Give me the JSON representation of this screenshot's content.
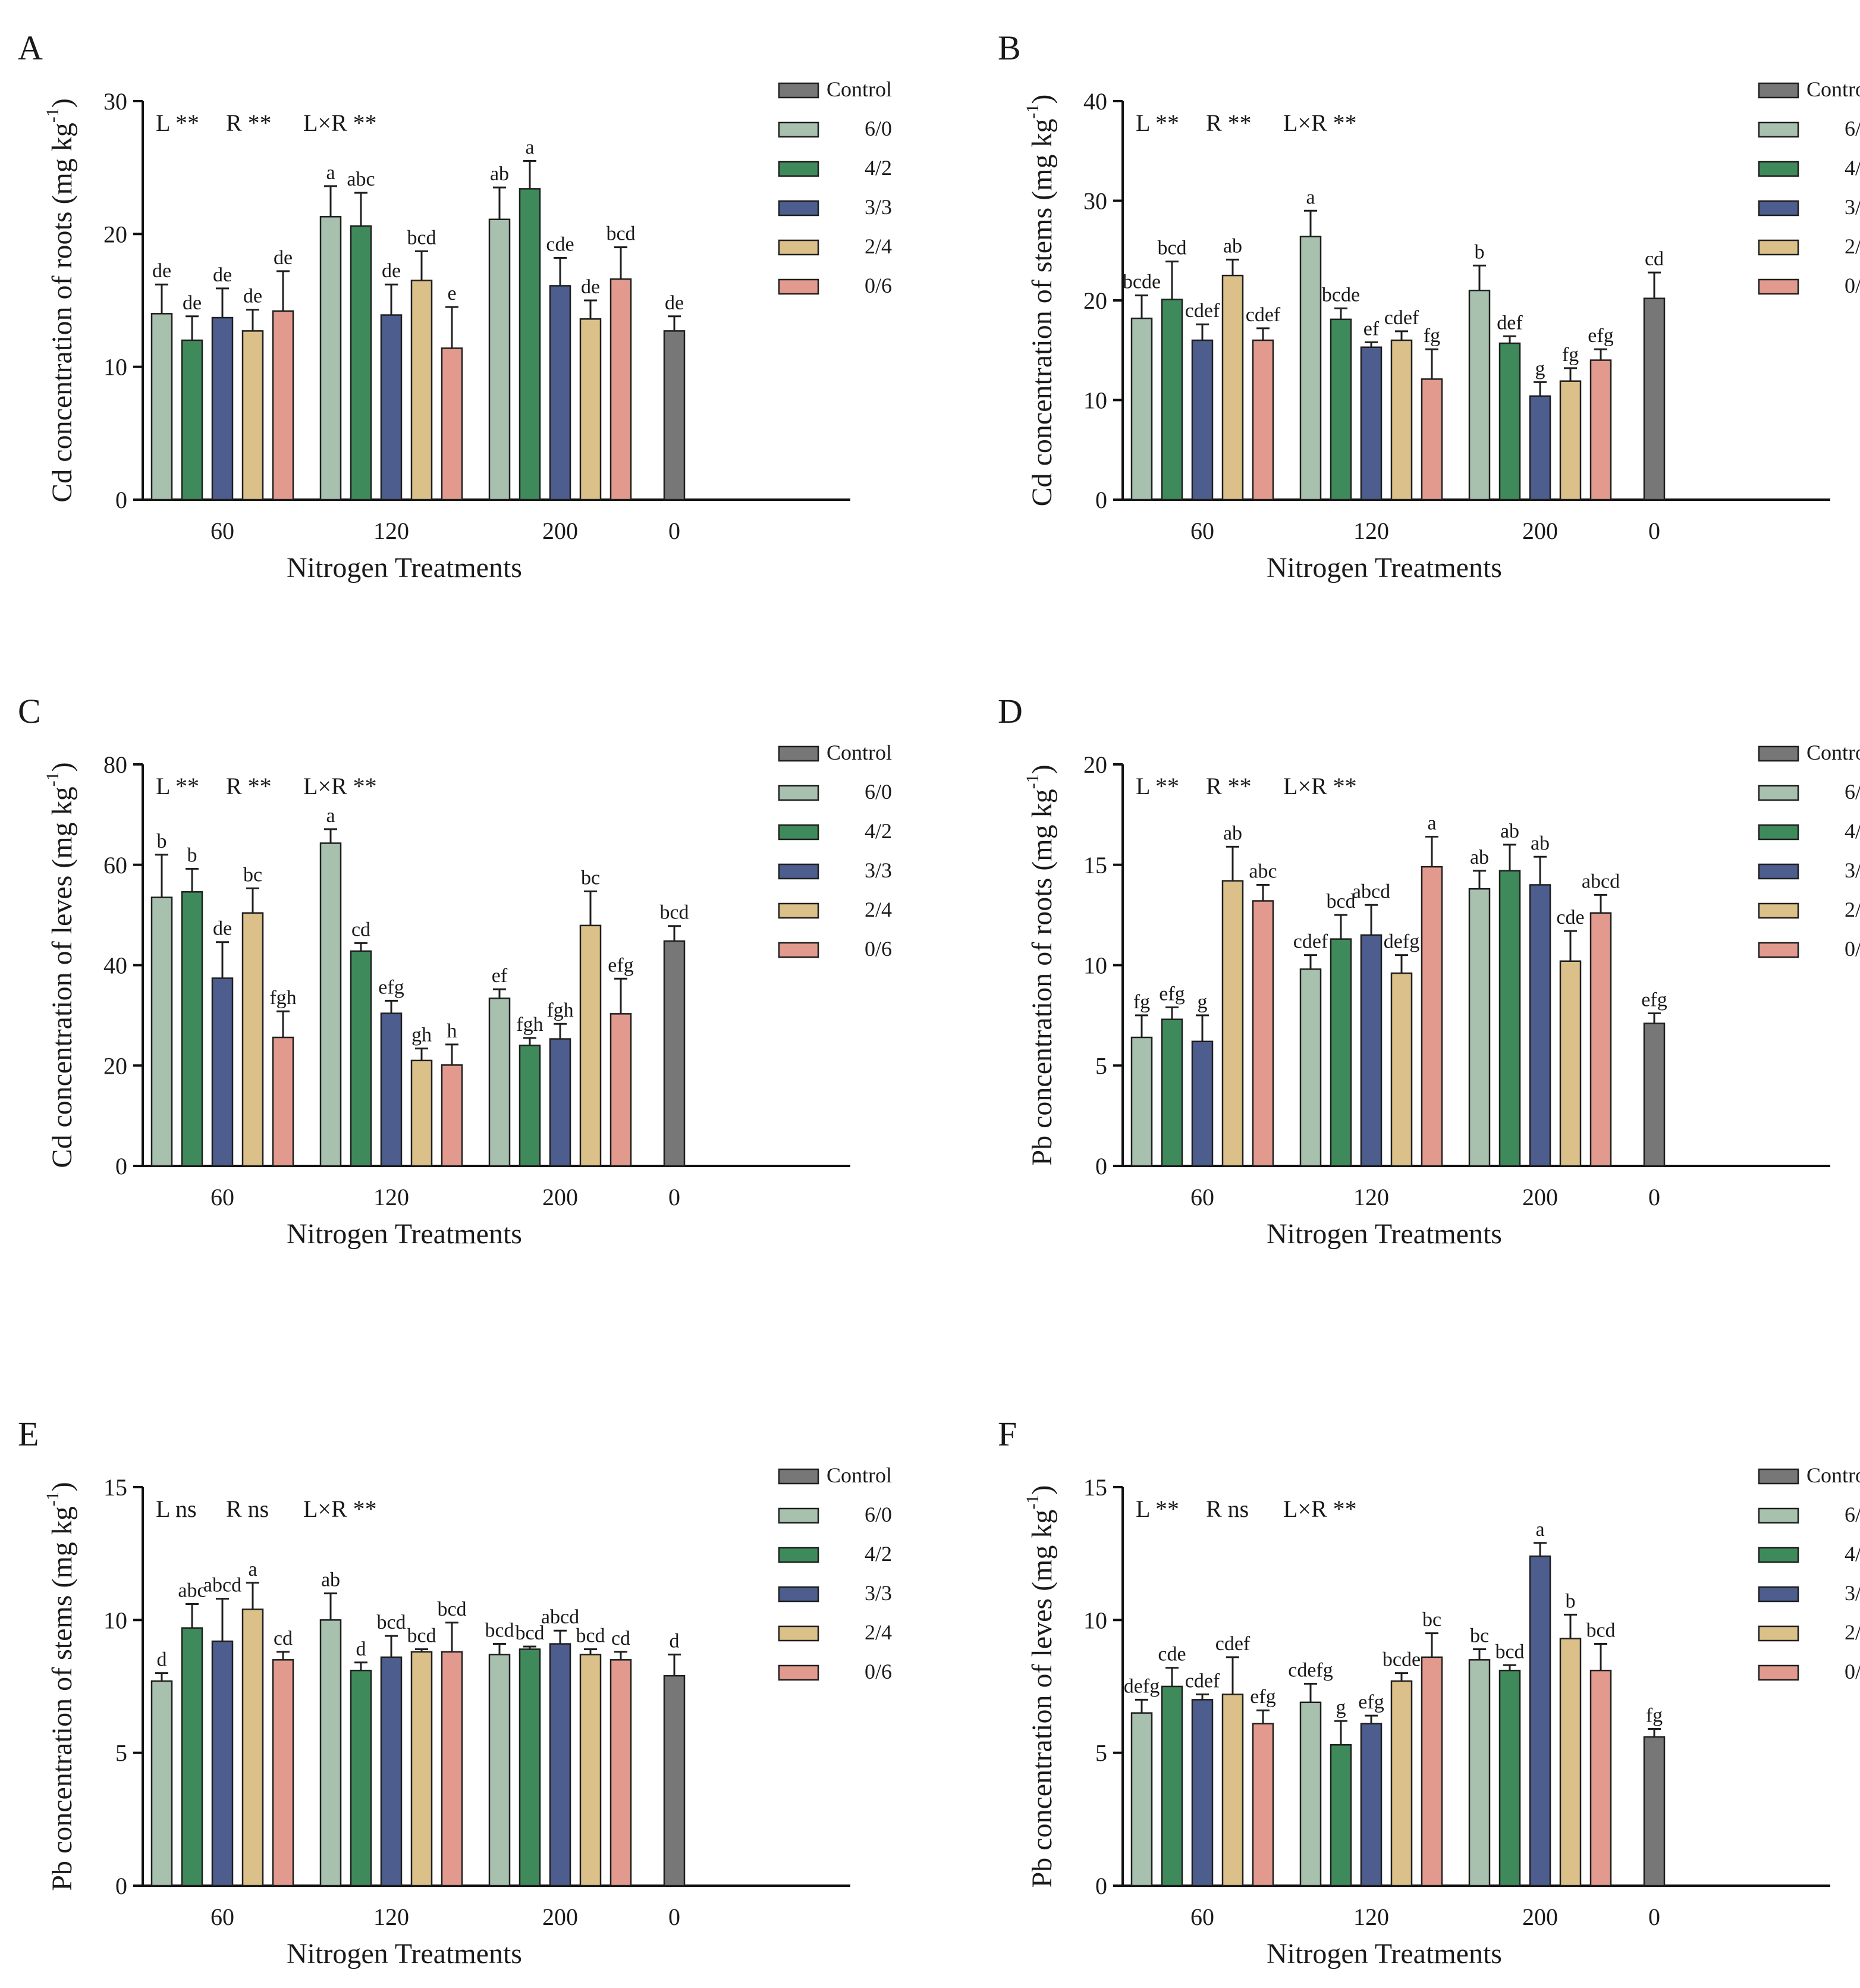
{
  "figure": {
    "legend": [
      {
        "key": "control",
        "label": "Control",
        "color": "#777777"
      },
      {
        "key": "r60",
        "label": "6/0",
        "color": "#a8c0ae"
      },
      {
        "key": "r42",
        "label": "4/2",
        "color": "#3f8a5a"
      },
      {
        "key": "r33",
        "label": "3/3",
        "color": "#4c5d8e"
      },
      {
        "key": "r24",
        "label": "2/4",
        "color": "#dbc08a"
      },
      {
        "key": "r06",
        "label": "0/6",
        "color": "#e29a8e"
      }
    ],
    "xlabel": "Nitrogen Treatments"
  },
  "chart_data": [
    {
      "panel": "A",
      "type": "bar",
      "ylabel": "Cd concentration of roots (mg kg-1)",
      "ylabel_base": "Cd concentration of roots (mg kg",
      "ylabel_sup": "-1",
      "ylabel_close": ")",
      "ylim": [
        0,
        30
      ],
      "yticks": [
        "0",
        "10",
        "20",
        "30"
      ],
      "significance": [
        "L **",
        "R **",
        "L×R **"
      ],
      "groups": [
        {
          "label": "60",
          "bars": [
            {
              "series": "6/0",
              "value": 14.0,
              "error": 2.2,
              "letter": "de"
            },
            {
              "series": "4/2",
              "value": 12.0,
              "error": 1.8,
              "letter": "de"
            },
            {
              "series": "3/3",
              "value": 13.7,
              "error": 2.2,
              "letter": "de"
            },
            {
              "series": "2/4",
              "value": 12.7,
              "error": 1.6,
              "letter": "de"
            },
            {
              "series": "0/6",
              "value": 14.2,
              "error": 3.0,
              "letter": "de"
            }
          ]
        },
        {
          "label": "120",
          "bars": [
            {
              "series": "6/0",
              "value": 21.3,
              "error": 2.3,
              "letter": "a"
            },
            {
              "series": "4/2",
              "value": 20.6,
              "error": 2.5,
              "letter": "abc"
            },
            {
              "series": "3/3",
              "value": 13.9,
              "error": 2.3,
              "letter": "de"
            },
            {
              "series": "2/4",
              "value": 16.5,
              "error": 2.2,
              "letter": "bcd"
            },
            {
              "series": "0/6",
              "value": 11.4,
              "error": 3.1,
              "letter": "e"
            }
          ]
        },
        {
          "label": "200",
          "bars": [
            {
              "series": "6/0",
              "value": 21.1,
              "error": 2.4,
              "letter": "ab"
            },
            {
              "series": "4/2",
              "value": 23.4,
              "error": 2.1,
              "letter": "a"
            },
            {
              "series": "3/3",
              "value": 16.1,
              "error": 2.1,
              "letter": "cde"
            },
            {
              "series": "2/4",
              "value": 13.6,
              "error": 1.4,
              "letter": "de"
            },
            {
              "series": "0/6",
              "value": 16.6,
              "error": 2.4,
              "letter": "bcd"
            }
          ]
        },
        {
          "label": "0",
          "bars": [
            {
              "series": "Control",
              "value": 12.7,
              "error": 1.1,
              "letter": "de"
            }
          ]
        }
      ]
    },
    {
      "panel": "B",
      "type": "bar",
      "ylabel": "Cd concentration of stems (mg kg-1)",
      "ylabel_base": "Cd concentration of stems (mg kg",
      "ylabel_sup": "-1",
      "ylabel_close": ")",
      "ylim": [
        0,
        40
      ],
      "yticks": [
        "0",
        "10",
        "20",
        "30",
        "40"
      ],
      "significance": [
        "L **",
        "R **",
        "L×R **"
      ],
      "groups": [
        {
          "label": "60",
          "bars": [
            {
              "series": "6/0",
              "value": 18.2,
              "error": 2.3,
              "letter": "bcde"
            },
            {
              "series": "4/2",
              "value": 20.1,
              "error": 3.8,
              "letter": "bcd"
            },
            {
              "series": "3/3",
              "value": 16.0,
              "error": 1.6,
              "letter": "cdef"
            },
            {
              "series": "2/4",
              "value": 22.5,
              "error": 1.6,
              "letter": "ab"
            },
            {
              "series": "0/6",
              "value": 16.0,
              "error": 1.2,
              "letter": "cdef"
            }
          ]
        },
        {
          "label": "120",
          "bars": [
            {
              "series": "6/0",
              "value": 26.4,
              "error": 2.6,
              "letter": "a"
            },
            {
              "series": "4/2",
              "value": 18.1,
              "error": 1.1,
              "letter": "bcde"
            },
            {
              "series": "3/3",
              "value": 15.3,
              "error": 0.5,
              "letter": "ef"
            },
            {
              "series": "2/4",
              "value": 16.0,
              "error": 0.9,
              "letter": "cdef"
            },
            {
              "series": "0/6",
              "value": 12.1,
              "error": 3.0,
              "letter": "fg"
            }
          ]
        },
        {
          "label": "200",
          "bars": [
            {
              "series": "6/0",
              "value": 21.0,
              "error": 2.5,
              "letter": "b"
            },
            {
              "series": "4/2",
              "value": 15.7,
              "error": 0.7,
              "letter": "def"
            },
            {
              "series": "3/3",
              "value": 10.4,
              "error": 1.4,
              "letter": "g"
            },
            {
              "series": "2/4",
              "value": 11.9,
              "error": 1.3,
              "letter": "fg"
            },
            {
              "series": "0/6",
              "value": 14.0,
              "error": 1.1,
              "letter": "efg"
            }
          ]
        },
        {
          "label": "0",
          "bars": [
            {
              "series": "Control",
              "value": 20.2,
              "error": 2.6,
              "letter": "cd"
            }
          ]
        }
      ]
    },
    {
      "panel": "C",
      "type": "bar",
      "ylabel": "Cd concentration of leves (mg kg-1)",
      "ylabel_base": "Cd concentration of leves (mg kg",
      "ylabel_sup": "-1",
      "ylabel_close": ")",
      "ylim": [
        0,
        80
      ],
      "yticks": [
        "0",
        "20",
        "40",
        "60",
        "80"
      ],
      "significance": [
        "L **",
        "R **",
        "L×R **"
      ],
      "groups": [
        {
          "label": "60",
          "bars": [
            {
              "series": "6/0",
              "value": 53.5,
              "error": 8.5,
              "letter": "b"
            },
            {
              "series": "4/2",
              "value": 54.6,
              "error": 4.6,
              "letter": "b"
            },
            {
              "series": "3/3",
              "value": 37.4,
              "error": 7.2,
              "letter": "de"
            },
            {
              "series": "2/4",
              "value": 50.4,
              "error": 4.9,
              "letter": "bc"
            },
            {
              "series": "0/6",
              "value": 25.6,
              "error": 5.2,
              "letter": "fgh"
            }
          ]
        },
        {
          "label": "120",
          "bars": [
            {
              "series": "6/0",
              "value": 64.3,
              "error": 2.8,
              "letter": "a"
            },
            {
              "series": "4/2",
              "value": 42.8,
              "error": 1.6,
              "letter": "cd"
            },
            {
              "series": "3/3",
              "value": 30.4,
              "error": 2.5,
              "letter": "efg"
            },
            {
              "series": "2/4",
              "value": 21.0,
              "error": 2.4,
              "letter": "gh"
            },
            {
              "series": "0/6",
              "value": 20.1,
              "error": 4.1,
              "letter": "h"
            }
          ]
        },
        {
          "label": "200",
          "bars": [
            {
              "series": "6/0",
              "value": 33.4,
              "error": 1.8,
              "letter": "ef"
            },
            {
              "series": "4/2",
              "value": 24.0,
              "error": 1.5,
              "letter": "fgh"
            },
            {
              "series": "3/3",
              "value": 25.3,
              "error": 3.0,
              "letter": "fgh"
            },
            {
              "series": "2/4",
              "value": 47.9,
              "error": 6.8,
              "letter": "bc"
            },
            {
              "series": "0/6",
              "value": 30.3,
              "error": 7.0,
              "letter": "efg"
            }
          ]
        },
        {
          "label": "0",
          "bars": [
            {
              "series": "Control",
              "value": 44.8,
              "error": 3.0,
              "letter": "bcd"
            }
          ]
        }
      ]
    },
    {
      "panel": "D",
      "type": "bar",
      "ylabel": "Pb concentration of roots (mg kg-1)",
      "ylabel_base": "Pb concentration of roots (mg kg",
      "ylabel_sup": "-1",
      "ylabel_close": ")",
      "ylim": [
        0,
        20
      ],
      "yticks": [
        "0",
        "5",
        "10",
        "15",
        "20"
      ],
      "significance": [
        "L **",
        "R **",
        "L×R **"
      ],
      "groups": [
        {
          "label": "60",
          "bars": [
            {
              "series": "6/0",
              "value": 6.4,
              "error": 1.1,
              "letter": "fg"
            },
            {
              "series": "4/2",
              "value": 7.3,
              "error": 0.6,
              "letter": "efg"
            },
            {
              "series": "3/3",
              "value": 6.2,
              "error": 1.3,
              "letter": "g"
            },
            {
              "series": "2/4",
              "value": 14.2,
              "error": 1.7,
              "letter": "ab"
            },
            {
              "series": "0/6",
              "value": 13.2,
              "error": 0.8,
              "letter": "abc"
            }
          ]
        },
        {
          "label": "120",
          "bars": [
            {
              "series": "6/0",
              "value": 9.8,
              "error": 0.7,
              "letter": "cdef"
            },
            {
              "series": "4/2",
              "value": 11.3,
              "error": 1.2,
              "letter": "bcd"
            },
            {
              "series": "3/3",
              "value": 11.5,
              "error": 1.5,
              "letter": "abcd"
            },
            {
              "series": "2/4",
              "value": 9.6,
              "error": 0.9,
              "letter": "defg"
            },
            {
              "series": "0/6",
              "value": 14.9,
              "error": 1.5,
              "letter": "a"
            }
          ]
        },
        {
          "label": "200",
          "bars": [
            {
              "series": "6/0",
              "value": 13.8,
              "error": 0.9,
              "letter": "ab"
            },
            {
              "series": "4/2",
              "value": 14.7,
              "error": 1.3,
              "letter": "ab"
            },
            {
              "series": "3/3",
              "value": 14.0,
              "error": 1.4,
              "letter": "ab"
            },
            {
              "series": "2/4",
              "value": 10.2,
              "error": 1.5,
              "letter": "cde"
            },
            {
              "series": "0/6",
              "value": 12.6,
              "error": 0.9,
              "letter": "abcd"
            }
          ]
        },
        {
          "label": "0",
          "bars": [
            {
              "series": "Control",
              "value": 7.1,
              "error": 0.5,
              "letter": "efg"
            }
          ]
        }
      ]
    },
    {
      "panel": "E",
      "type": "bar",
      "ylabel": "Pb concentration of stems (mg kg-1)",
      "ylabel_base": "Pb concentration of stems (mg kg",
      "ylabel_sup": "-1",
      "ylabel_close": ")",
      "ylim": [
        0,
        15
      ],
      "yticks": [
        "0",
        "5",
        "10",
        "15"
      ],
      "significance": [
        "L ns",
        "R ns",
        "L×R **"
      ],
      "groups": [
        {
          "label": "60",
          "bars": [
            {
              "series": "6/0",
              "value": 7.7,
              "error": 0.3,
              "letter": "d"
            },
            {
              "series": "4/2",
              "value": 9.7,
              "error": 0.9,
              "letter": "abc"
            },
            {
              "series": "3/3",
              "value": 9.2,
              "error": 1.6,
              "letter": "abcd"
            },
            {
              "series": "2/4",
              "value": 10.4,
              "error": 1.0,
              "letter": "a"
            },
            {
              "series": "0/6",
              "value": 8.5,
              "error": 0.3,
              "letter": "cd"
            }
          ]
        },
        {
          "label": "120",
          "bars": [
            {
              "series": "6/0",
              "value": 10.0,
              "error": 1.0,
              "letter": "ab"
            },
            {
              "series": "4/2",
              "value": 8.1,
              "error": 0.3,
              "letter": "d"
            },
            {
              "series": "3/3",
              "value": 8.6,
              "error": 0.8,
              "letter": "bcd"
            },
            {
              "series": "2/4",
              "value": 8.8,
              "error": 0.1,
              "letter": "bcd"
            },
            {
              "series": "0/6",
              "value": 8.8,
              "error": 1.1,
              "letter": "bcd"
            }
          ]
        },
        {
          "label": "200",
          "bars": [
            {
              "series": "6/0",
              "value": 8.7,
              "error": 0.4,
              "letter": "bcd"
            },
            {
              "series": "4/2",
              "value": 8.9,
              "error": 0.1,
              "letter": "bcd"
            },
            {
              "series": "3/3",
              "value": 9.1,
              "error": 0.5,
              "letter": "abcd"
            },
            {
              "series": "2/4",
              "value": 8.7,
              "error": 0.2,
              "letter": "bcd"
            },
            {
              "series": "0/6",
              "value": 8.5,
              "error": 0.3,
              "letter": "cd"
            }
          ]
        },
        {
          "label": "0",
          "bars": [
            {
              "series": "Control",
              "value": 7.9,
              "error": 0.8,
              "letter": "d"
            }
          ]
        }
      ]
    },
    {
      "panel": "F",
      "type": "bar",
      "ylabel": "Pb concentration of leves (mg kg-1)",
      "ylabel_base": "Pb concentration of leves (mg kg",
      "ylabel_sup": "-1",
      "ylabel_close": ")",
      "ylim": [
        0,
        15
      ],
      "yticks": [
        "0",
        "5",
        "10",
        "15"
      ],
      "significance": [
        "L **",
        "R ns",
        "L×R **"
      ],
      "groups": [
        {
          "label": "60",
          "bars": [
            {
              "series": "6/0",
              "value": 6.5,
              "error": 0.5,
              "letter": "defg"
            },
            {
              "series": "4/2",
              "value": 7.5,
              "error": 0.7,
              "letter": "cde"
            },
            {
              "series": "3/3",
              "value": 7.0,
              "error": 0.2,
              "letter": "cdef"
            },
            {
              "series": "2/4",
              "value": 7.2,
              "error": 1.4,
              "letter": "cdef"
            },
            {
              "series": "0/6",
              "value": 6.1,
              "error": 0.5,
              "letter": "efg"
            }
          ]
        },
        {
          "label": "120",
          "bars": [
            {
              "series": "6/0",
              "value": 6.9,
              "error": 0.7,
              "letter": "cdefg"
            },
            {
              "series": "4/2",
              "value": 5.3,
              "error": 0.9,
              "letter": "g"
            },
            {
              "series": "3/3",
              "value": 6.1,
              "error": 0.3,
              "letter": "efg"
            },
            {
              "series": "2/4",
              "value": 7.7,
              "error": 0.3,
              "letter": "bcde"
            },
            {
              "series": "0/6",
              "value": 8.6,
              "error": 0.9,
              "letter": "bc"
            }
          ]
        },
        {
          "label": "200",
          "bars": [
            {
              "series": "6/0",
              "value": 8.5,
              "error": 0.4,
              "letter": "bc"
            },
            {
              "series": "4/2",
              "value": 8.1,
              "error": 0.2,
              "letter": "bcd"
            },
            {
              "series": "3/3",
              "value": 12.4,
              "error": 0.5,
              "letter": "a"
            },
            {
              "series": "2/4",
              "value": 9.3,
              "error": 0.9,
              "letter": "b"
            },
            {
              "series": "0/6",
              "value": 8.1,
              "error": 1.0,
              "letter": "bcd"
            }
          ]
        },
        {
          "label": "0",
          "bars": [
            {
              "series": "Control",
              "value": 5.6,
              "error": 0.3,
              "letter": "fg"
            }
          ]
        }
      ]
    }
  ]
}
